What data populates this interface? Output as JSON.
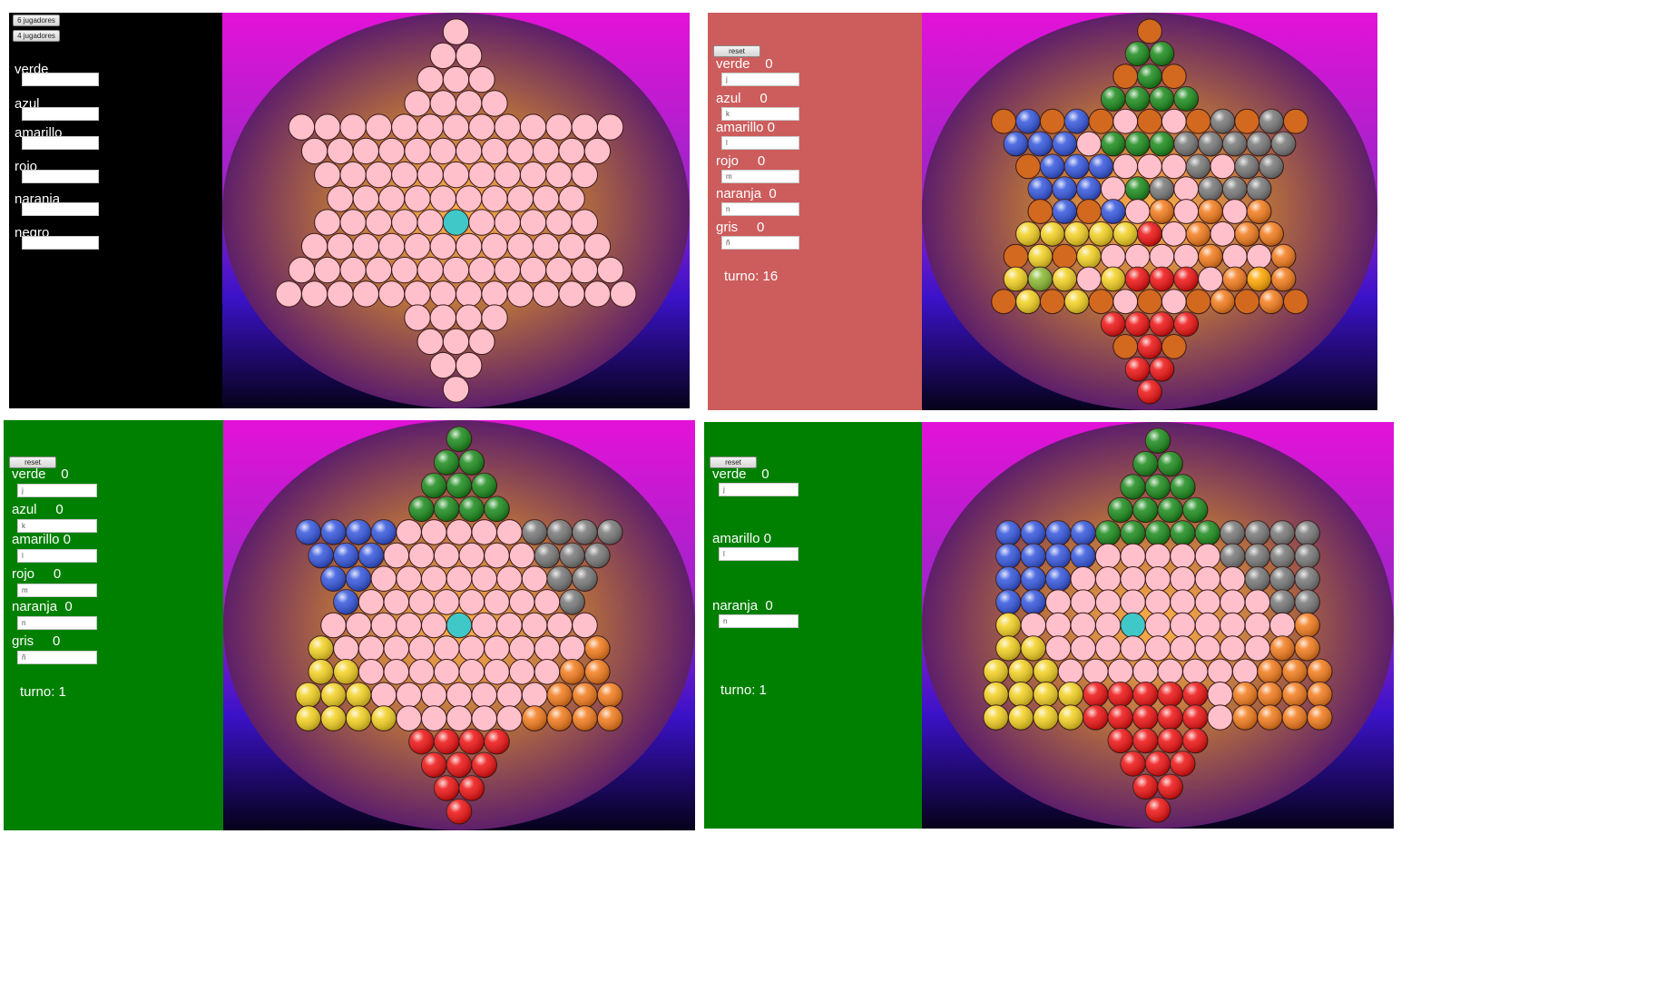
{
  "colors": {
    "board_top": "#e312d8",
    "board_mid": "#9b25c8",
    "board_blue": "#3b12c8",
    "board_bottom": "#06021a",
    "circle_outer": "#5e1f6a",
    "circle_glow": "#ffb14a",
    "hole": "#ffc0cb",
    "center": "#40c8c8",
    "panel1_bg": "#000000",
    "panel2_bg": "#cd5c5c",
    "panel3_bg": "#008000",
    "panel4_bg": "#008000"
  },
  "piece_colors": {
    "P": "#ffc0cb",
    "C": "#40c8c8",
    "G": "#1a8a1a",
    "B": "#3355dd",
    "Y": "#f2d020",
    "R": "#ee1111",
    "O": "#f27a1a",
    "K": "#777777",
    "D": "#d2691e",
    "L": "#8ab830",
    "A": "#ffa500"
  },
  "panels": [
    {
      "id": "six-player-setup",
      "buttons": [
        "6 jugadores",
        "4 jugadores"
      ],
      "players": [
        {
          "name": "verde",
          "field": ""
        },
        {
          "name": "azul",
          "field": ""
        },
        {
          "name": "amarillo",
          "field": ""
        },
        {
          "name": "rojo",
          "field": ""
        },
        {
          "name": "naranja",
          "field": ""
        },
        {
          "name": "negro",
          "field": ""
        }
      ],
      "turn": ""
    },
    {
      "id": "game-in-progress",
      "buttons": [
        "reset"
      ],
      "players": [
        {
          "name": "verde    0",
          "field": "j"
        },
        {
          "name": "azul     0",
          "field": "k"
        },
        {
          "name": "amarillo 0",
          "field": "l"
        },
        {
          "name": "rojo     0",
          "field": "m"
        },
        {
          "name": "naranja  0",
          "field": "n"
        },
        {
          "name": "gris     0",
          "field": "ñ"
        }
      ],
      "turn": "turno: 16"
    },
    {
      "id": "six-player-start",
      "buttons": [
        "reset"
      ],
      "players": [
        {
          "name": "verde    0",
          "field": "j"
        },
        {
          "name": "azul     0",
          "field": "k"
        },
        {
          "name": "amarillo 0",
          "field": "l"
        },
        {
          "name": "rojo     0",
          "field": "m"
        },
        {
          "name": "naranja  0",
          "field": "n"
        },
        {
          "name": "gris     0",
          "field": "ñ"
        }
      ],
      "turn": "turno: 1"
    },
    {
      "id": "three-player-start",
      "buttons": [
        "reset"
      ],
      "players": [
        {
          "name": "verde    0",
          "field": "j"
        },
        {
          "name": "amarillo 0",
          "field": "l"
        },
        {
          "name": "naranja  0",
          "field": "n"
        }
      ],
      "turn": "turno: 1"
    }
  ],
  "boards": [
    {
      "rows": [
        "P",
        "PP",
        "PPP",
        "PPPP",
        "PPPPPPPPPPPPP",
        "PPPPPPPPPPPP",
        "PPPPPPPPPPP",
        "PPPPPPPPPP",
        "PPPPPCPPPPP",
        "PPPPPPPPPPPP",
        "PPPPPPPPPPPPP",
        "PPPPPPPPPPPPPP",
        "PPPP",
        "PPP",
        "PP",
        "P"
      ]
    },
    {
      "rows": [
        "D",
        "GG",
        "DGD",
        "GGGG",
        "DBDBDPDPDKDKD",
        "BBBPGGGKKKKK",
        "DBBBPPPKPKK",
        "BBBPGKPKKK",
        "DBDBPOPOPO",
        "YYYYYRPOPOO",
        "DYDYPPPPOPPO",
        "YLYPYRRRPOAO",
        "DYDYDPDPDODOD",
        "RRRR",
        "DRD",
        "RR",
        "R"
      ]
    },
    {
      "rows": [
        "G",
        "GG",
        "GGG",
        "GGGG",
        "BBBBPPPPPKKKK",
        "BBBPPPPPPKKK",
        "BBPPPPPPPKK",
        "BPPPPPPPPK",
        "PPPPPCPPPPP",
        "YPPPPPPPPPPO",
        "YYPPPPPPPPOO",
        "YYYPPPPPPPOOO",
        "YYYYPPPPPOOOO",
        "RRRR",
        "RRR",
        "RR",
        "R"
      ]
    },
    {
      "rows": [
        "G",
        "GG",
        "GGG",
        "GGGG",
        "BBBBGGGGGKKKK",
        "BBBBPPPPPKKKK",
        "BBBPPPPPPPKKK",
        "BBPPPPPPPPPKK",
        "YPPPPCPPPPPPO",
        "YYPPPPPPPPPOO",
        "YYYPPPPPPPPOOO",
        "YYYYRRRRRPOOOO",
        "YYYYRRRRRPOOOO",
        "RRRR",
        "RRR",
        "RR",
        "R"
      ]
    }
  ]
}
